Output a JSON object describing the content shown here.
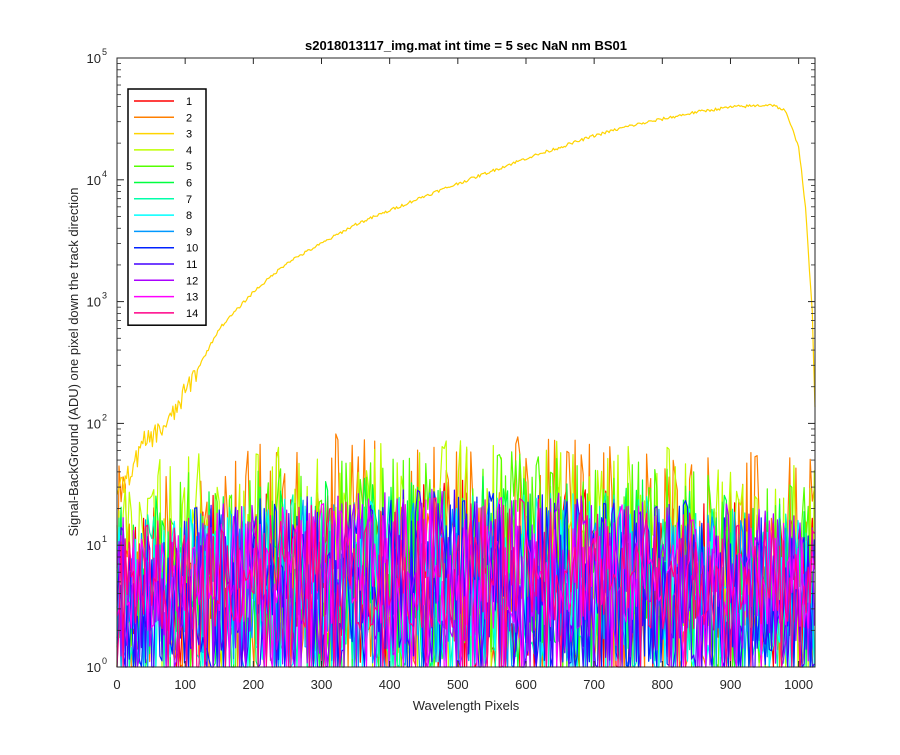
{
  "chart_data": {
    "type": "line",
    "title": "s2018013117_img.mat int time = 5 sec  NaN nm BS01",
    "xlabel": "Wavelength Pixels",
    "ylabel": "Signal-BackGround (ADU) one pixel down the track direction",
    "xlim": [
      0,
      1024
    ],
    "ylim": [
      1,
      100000
    ],
    "yscale": "log",
    "grid": false,
    "legend_position": "top-left",
    "x_ticks": [
      0,
      100,
      200,
      300,
      400,
      500,
      600,
      700,
      800,
      900,
      1000
    ],
    "y_ticks": [
      {
        "value": 1,
        "base": "10",
        "exp": "0"
      },
      {
        "value": 10,
        "base": "10",
        "exp": "1"
      },
      {
        "value": 100,
        "base": "10",
        "exp": "2"
      },
      {
        "value": 1000,
        "base": "10",
        "exp": "3"
      },
      {
        "value": 10000,
        "base": "10",
        "exp": "4"
      },
      {
        "value": 100000,
        "base": "10",
        "exp": "5"
      }
    ],
    "series": [
      {
        "name": "1",
        "color": "#ff0000",
        "noise": {
          "min": 1,
          "max": 35
        }
      },
      {
        "name": "2",
        "color": "#ff7f00",
        "noise": {
          "min": 1,
          "max": 90
        }
      },
      {
        "name": "3",
        "color": "#ffd400",
        "x": [
          0,
          10,
          20,
          40,
          60,
          80,
          100,
          150,
          200,
          250,
          300,
          350,
          400,
          450,
          500,
          550,
          600,
          650,
          700,
          750,
          800,
          850,
          900,
          950,
          960,
          980,
          1000,
          1010,
          1020,
          1024
        ],
        "values": [
          30,
          32,
          40,
          70,
          85,
          110,
          180,
          600,
          1200,
          2100,
          3000,
          4300,
          5600,
          7300,
          9300,
          11800,
          15000,
          18500,
          23000,
          27500,
          31500,
          36000,
          39500,
          41000,
          41500,
          37000,
          19000,
          6000,
          800,
          140
        ]
      },
      {
        "name": "4",
        "color": "#bfff00",
        "noise": {
          "min": 2,
          "max": 80
        }
      },
      {
        "name": "5",
        "color": "#55ff00",
        "noise": {
          "min": 1,
          "max": 60
        }
      },
      {
        "name": "6",
        "color": "#00ff40",
        "noise": {
          "min": 1,
          "max": 40
        }
      },
      {
        "name": "7",
        "color": "#00ffaa",
        "noise": {
          "min": 1,
          "max": 30
        }
      },
      {
        "name": "8",
        "color": "#00ffff",
        "noise": {
          "min": 1,
          "max": 28
        }
      },
      {
        "name": "9",
        "color": "#0099ff",
        "noise": {
          "min": 1,
          "max": 28
        }
      },
      {
        "name": "10",
        "color": "#0022ff",
        "noise": {
          "min": 1,
          "max": 30
        }
      },
      {
        "name": "11",
        "color": "#4400ff",
        "noise": {
          "min": 1,
          "max": 30
        }
      },
      {
        "name": "12",
        "color": "#aa00ff",
        "noise": {
          "min": 1,
          "max": 30
        }
      },
      {
        "name": "13",
        "color": "#ff00ff",
        "noise": {
          "min": 2,
          "max": 25
        }
      },
      {
        "name": "14",
        "color": "#ff0088",
        "noise": {
          "min": 2,
          "max": 25
        }
      }
    ]
  }
}
